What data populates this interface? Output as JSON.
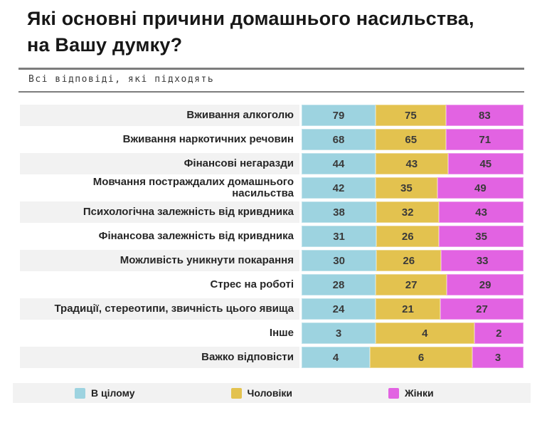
{
  "title_lines": [
    "Які основні причини домашнього насильства,",
    "на Вашу думку?"
  ],
  "subtitle": "Всі відповіді, які підходять",
  "colors": {
    "series_total": "#9dd3e0",
    "series_men": "#e3c24f",
    "series_women": "#e263e2",
    "row_stripe": "#f2f2f2",
    "legend_bg": "#f2f2f2",
    "rule": "#7d7d7d"
  },
  "legend": {
    "items": [
      {
        "label": "В цілому",
        "color": "#9dd3e0"
      },
      {
        "label": "Чоловіки",
        "color": "#e3c24f"
      },
      {
        "label": "Жінки",
        "color": "#e263e2"
      }
    ]
  },
  "chart_data": {
    "type": "bar",
    "orientation": "horizontal",
    "stacking": "percent",
    "value_labels": true,
    "title": "Які основні причини домашнього насильства, на Вашу думку?",
    "subtitle": "Всі відповіді, які підходять",
    "legend_position": "bottom",
    "categories": [
      "Вживання алкоголю",
      "Вживання наркотичних речовин",
      "Фінансові негаразди",
      "Мовчання постраждалих домашнього насильства",
      "Психологічна залежність від кривдника",
      "Фінансова залежність від кривдника",
      "Можливість уникнути покарання",
      "Стрес на роботі",
      "Традиції, стереотипи, звичність цього явища",
      "Інше",
      "Важко відповісти"
    ],
    "series": [
      {
        "name": "В цілому",
        "color": "#9dd3e0",
        "values": [
          79,
          68,
          44,
          42,
          38,
          31,
          30,
          28,
          24,
          3,
          4
        ]
      },
      {
        "name": "Чоловіки",
        "color": "#e3c24f",
        "values": [
          75,
          65,
          43,
          35,
          32,
          26,
          26,
          27,
          21,
          4,
          6
        ]
      },
      {
        "name": "Жінки",
        "color": "#e263e2",
        "values": [
          83,
          71,
          45,
          49,
          43,
          35,
          33,
          29,
          27,
          2,
          3
        ]
      }
    ]
  }
}
